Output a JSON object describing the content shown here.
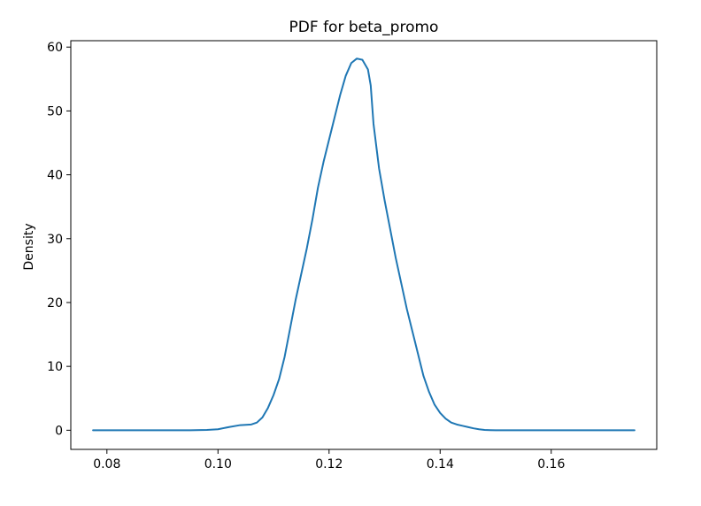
{
  "chart_data": {
    "type": "line",
    "title": "PDF for beta_promo",
    "xlabel": "",
    "ylabel": "Density",
    "xlim": [
      0.0735,
      0.179
    ],
    "ylim": [
      -3.0,
      61.0
    ],
    "x_ticks": [
      0.08,
      0.1,
      0.12,
      0.14,
      0.16
    ],
    "x_tick_labels": [
      "0.08",
      "0.10",
      "0.12",
      "0.14",
      "0.16"
    ],
    "y_ticks": [
      0,
      10,
      20,
      30,
      40,
      50,
      60
    ],
    "y_tick_labels": [
      "0",
      "10",
      "20",
      "30",
      "40",
      "50",
      "60"
    ],
    "grid": false,
    "line_color": "#1f77b4",
    "series": [
      {
        "x": [
          0.0775,
          0.085,
          0.09,
          0.095,
          0.098,
          0.1,
          0.102,
          0.104,
          0.106,
          0.107,
          0.108,
          0.109,
          0.11,
          0.111,
          0.112,
          0.113,
          0.114,
          0.115,
          0.116,
          0.117,
          0.118,
          0.119,
          0.12,
          0.121,
          0.122,
          0.123,
          0.124,
          0.125,
          0.126,
          0.127,
          0.1275,
          0.128,
          0.129,
          0.13,
          0.131,
          0.132,
          0.133,
          0.134,
          0.135,
          0.136,
          0.137,
          0.138,
          0.139,
          0.14,
          0.141,
          0.142,
          0.143,
          0.144,
          0.145,
          0.146,
          0.147,
          0.148,
          0.149,
          0.15,
          0.151,
          0.152,
          0.153,
          0.155,
          0.16,
          0.165,
          0.17,
          0.175
        ],
        "y": [
          0,
          0,
          0,
          0,
          0.05,
          0.15,
          0.5,
          0.8,
          0.9,
          1.2,
          2.0,
          3.5,
          5.5,
          8.0,
          11.5,
          16.0,
          20.5,
          24.5,
          28.5,
          33.0,
          38.0,
          42.0,
          45.5,
          49.0,
          52.5,
          55.5,
          57.5,
          58.2,
          58.0,
          56.5,
          54.0,
          48.0,
          41.0,
          36.0,
          31.5,
          27.0,
          23.0,
          19.0,
          15.5,
          12.0,
          8.5,
          6.0,
          4.0,
          2.7,
          1.8,
          1.2,
          0.9,
          0.7,
          0.5,
          0.3,
          0.15,
          0.05,
          0.02,
          0,
          0,
          0,
          0,
          0,
          0,
          0,
          0,
          0
        ]
      }
    ]
  }
}
